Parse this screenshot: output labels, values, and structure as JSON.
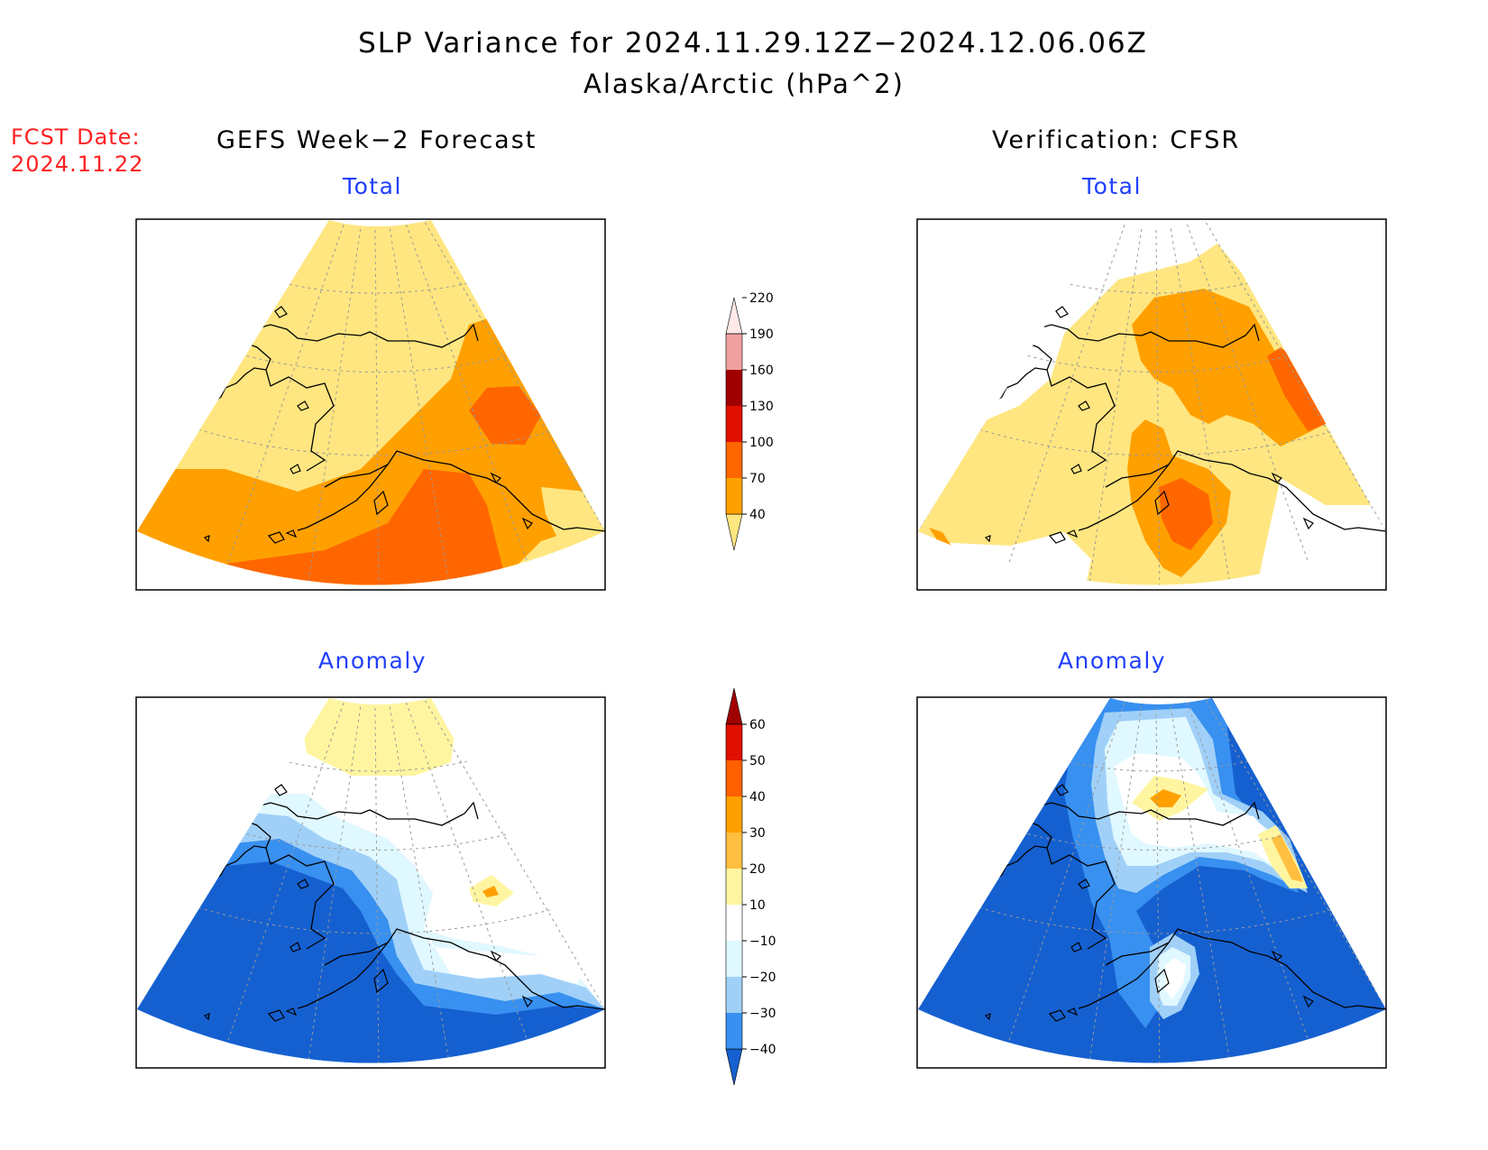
{
  "title": "SLP Variance for 2024.11.29.12Z−2024.12.06.06Z",
  "subtitle": "Alaska/Arctic (hPa^2)",
  "forecast_date_label": "FCST Date:",
  "forecast_date_value": "2024.11.22",
  "left_column_title": "GEFS Week−2 Forecast",
  "right_column_title": "Verification: CFSR",
  "panels": {
    "top_left": "Total",
    "top_right": "Total",
    "bottom_left": "Anomaly",
    "bottom_right": "Anomaly"
  },
  "colorbars": {
    "total": {
      "levels": [
        "40",
        "70",
        "100",
        "130",
        "160",
        "190",
        "220"
      ],
      "colors": [
        "#ffe680",
        "#ffa000",
        "#ff6600",
        "#e01000",
        "#a00000",
        "#f0a0a0",
        "#ffe8e8"
      ]
    },
    "anomaly": {
      "levels": [
        "−40",
        "−30",
        "−20",
        "−10",
        "10",
        "20",
        "30",
        "40",
        "50",
        "60"
      ],
      "colors": [
        "#1560d0",
        "#3890f0",
        "#a0d0f8",
        "#e0f8ff",
        "#ffffff",
        "#fff5a0",
        "#ffbf40",
        "#ffa000",
        "#ff6000",
        "#e01000",
        "#a00000"
      ]
    }
  }
}
